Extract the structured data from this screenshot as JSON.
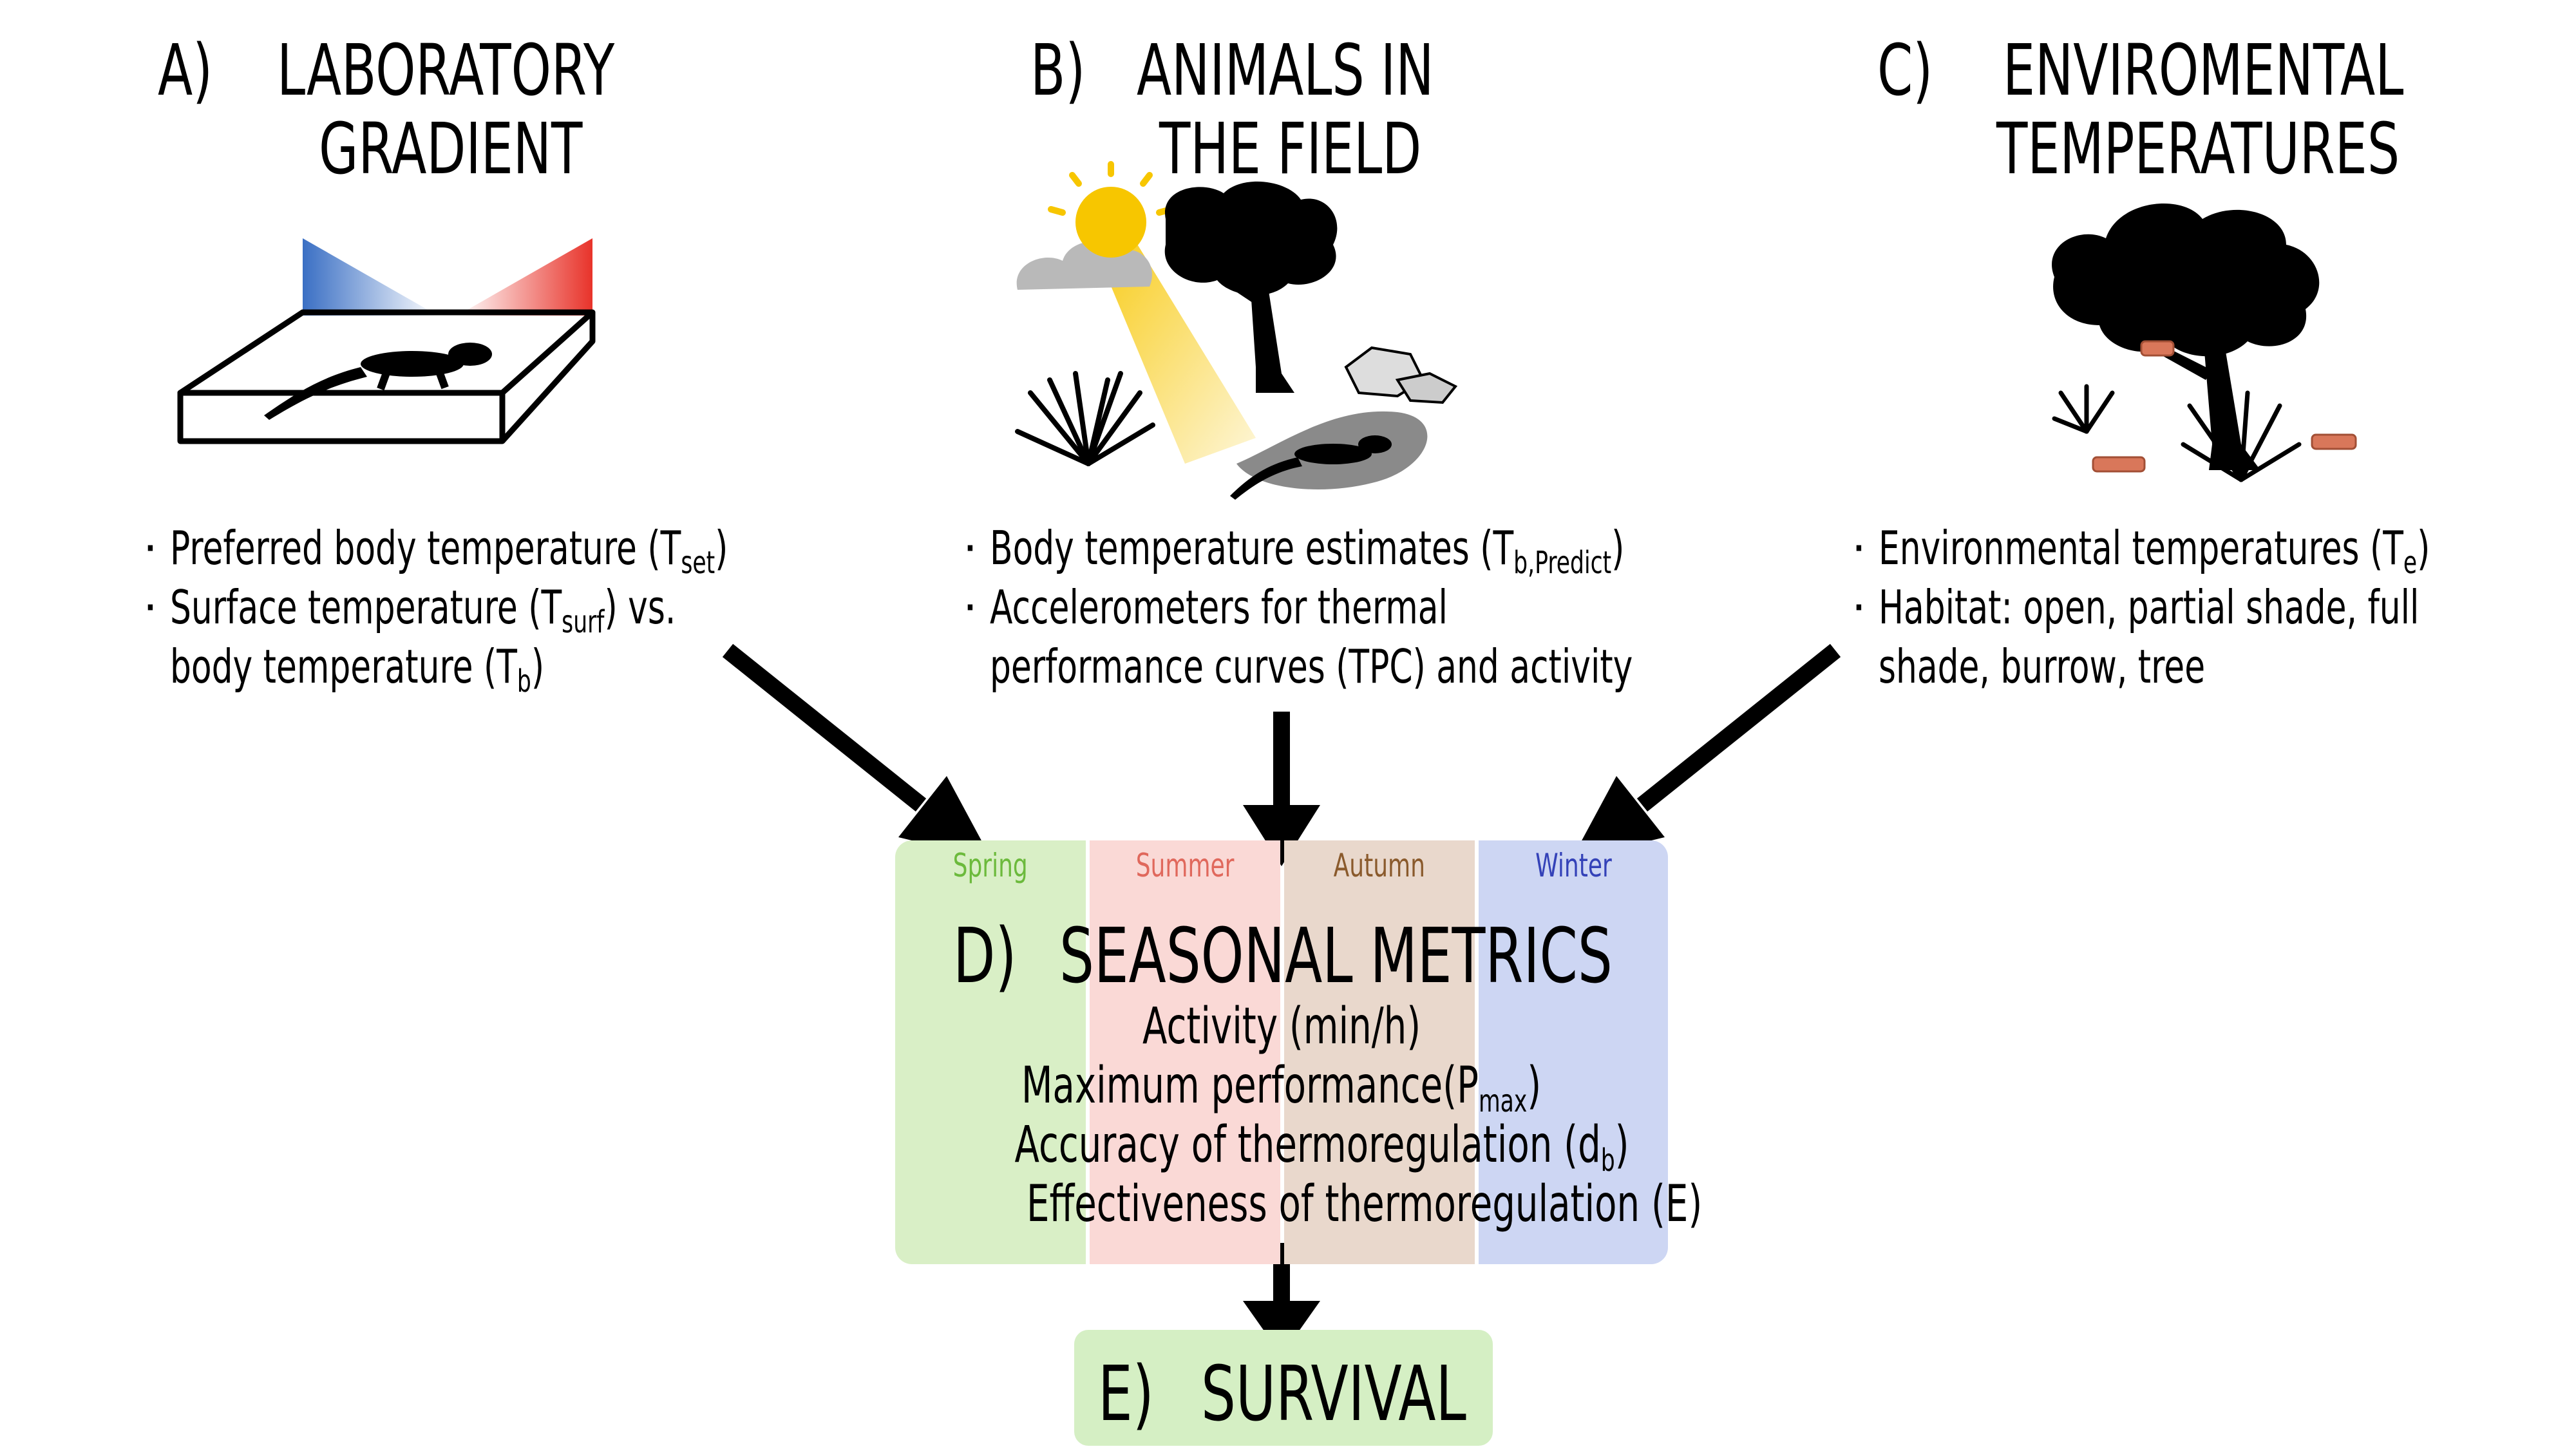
{
  "panels": {
    "a": {
      "letter": "A)",
      "title_1": "LABORATORY",
      "title_2": "GRADIENT",
      "bullets": [
        {
          "text": "Preferred body temperature (T",
          "sub": "set",
          "tail": ")"
        },
        {
          "text": "Surface temperature (T",
          "sub": "surf",
          "tail": ") vs."
        },
        {
          "text": "body temperature (T",
          "sub": "b",
          "tail": ")"
        }
      ]
    },
    "b": {
      "letter": "B)",
      "title_1": "ANIMALS IN",
      "title_2": "THE FIELD",
      "bullets": [
        {
          "text": "Body temperature estimates (T",
          "sub": "b,Predict",
          "tail": ")"
        },
        {
          "text": "Accelerometers for thermal",
          "sub": "",
          "tail": ""
        },
        {
          "text": "performance curves (TPC) and activity",
          "sub": "",
          "tail": ""
        }
      ]
    },
    "c": {
      "letter": "C)",
      "title_1": "ENVIROMENTAL",
      "title_2": "TEMPERATURES",
      "bullets": [
        {
          "text": "Environmental temperatures (T",
          "sub": "e",
          "tail": ")"
        },
        {
          "text": "Habitat: open, partial shade, full",
          "sub": "",
          "tail": ""
        },
        {
          "text": "shade, burrow, tree",
          "sub": "",
          "tail": ""
        }
      ]
    }
  },
  "seasonal": {
    "letter": "D)",
    "title": "SEASONAL METRICS",
    "seasons": [
      {
        "name": "Spring",
        "fill": "#d9efc6",
        "text_color": "#6cba3c"
      },
      {
        "name": "Summer",
        "fill": "#fad9d6",
        "text_color": "#e0685c"
      },
      {
        "name": "Autumn",
        "fill": "#e9d8cc",
        "text_color": "#8a5a2c"
      },
      {
        "name": "Winter",
        "fill": "#cdd6f3",
        "text_color": "#3442b8"
      }
    ],
    "metrics": [
      {
        "text": "Activity (min/h)",
        "sub": "",
        "tail": ""
      },
      {
        "text": "Maximum performance(P",
        "sub": "max",
        "tail": ")"
      },
      {
        "text": "Accuracy of thermoregulation (d",
        "sub": "b",
        "tail": ")"
      },
      {
        "text": "Effectiveness of thermoregulation (E)",
        "sub": "",
        "tail": ""
      }
    ]
  },
  "survival": {
    "letter": "E)",
    "title": "SURVIVAL",
    "fill": "#d5efc4"
  },
  "colors": {
    "gradient_cold": "#3a6fc4",
    "gradient_hot": "#e8332a",
    "sun": "#f7c600",
    "arrow": "#000000"
  },
  "icons": [
    "lizard-icon",
    "sun-icon",
    "cloud-icon",
    "tree-icon",
    "rock-icon",
    "grass-icon",
    "copper-model-icon"
  ]
}
